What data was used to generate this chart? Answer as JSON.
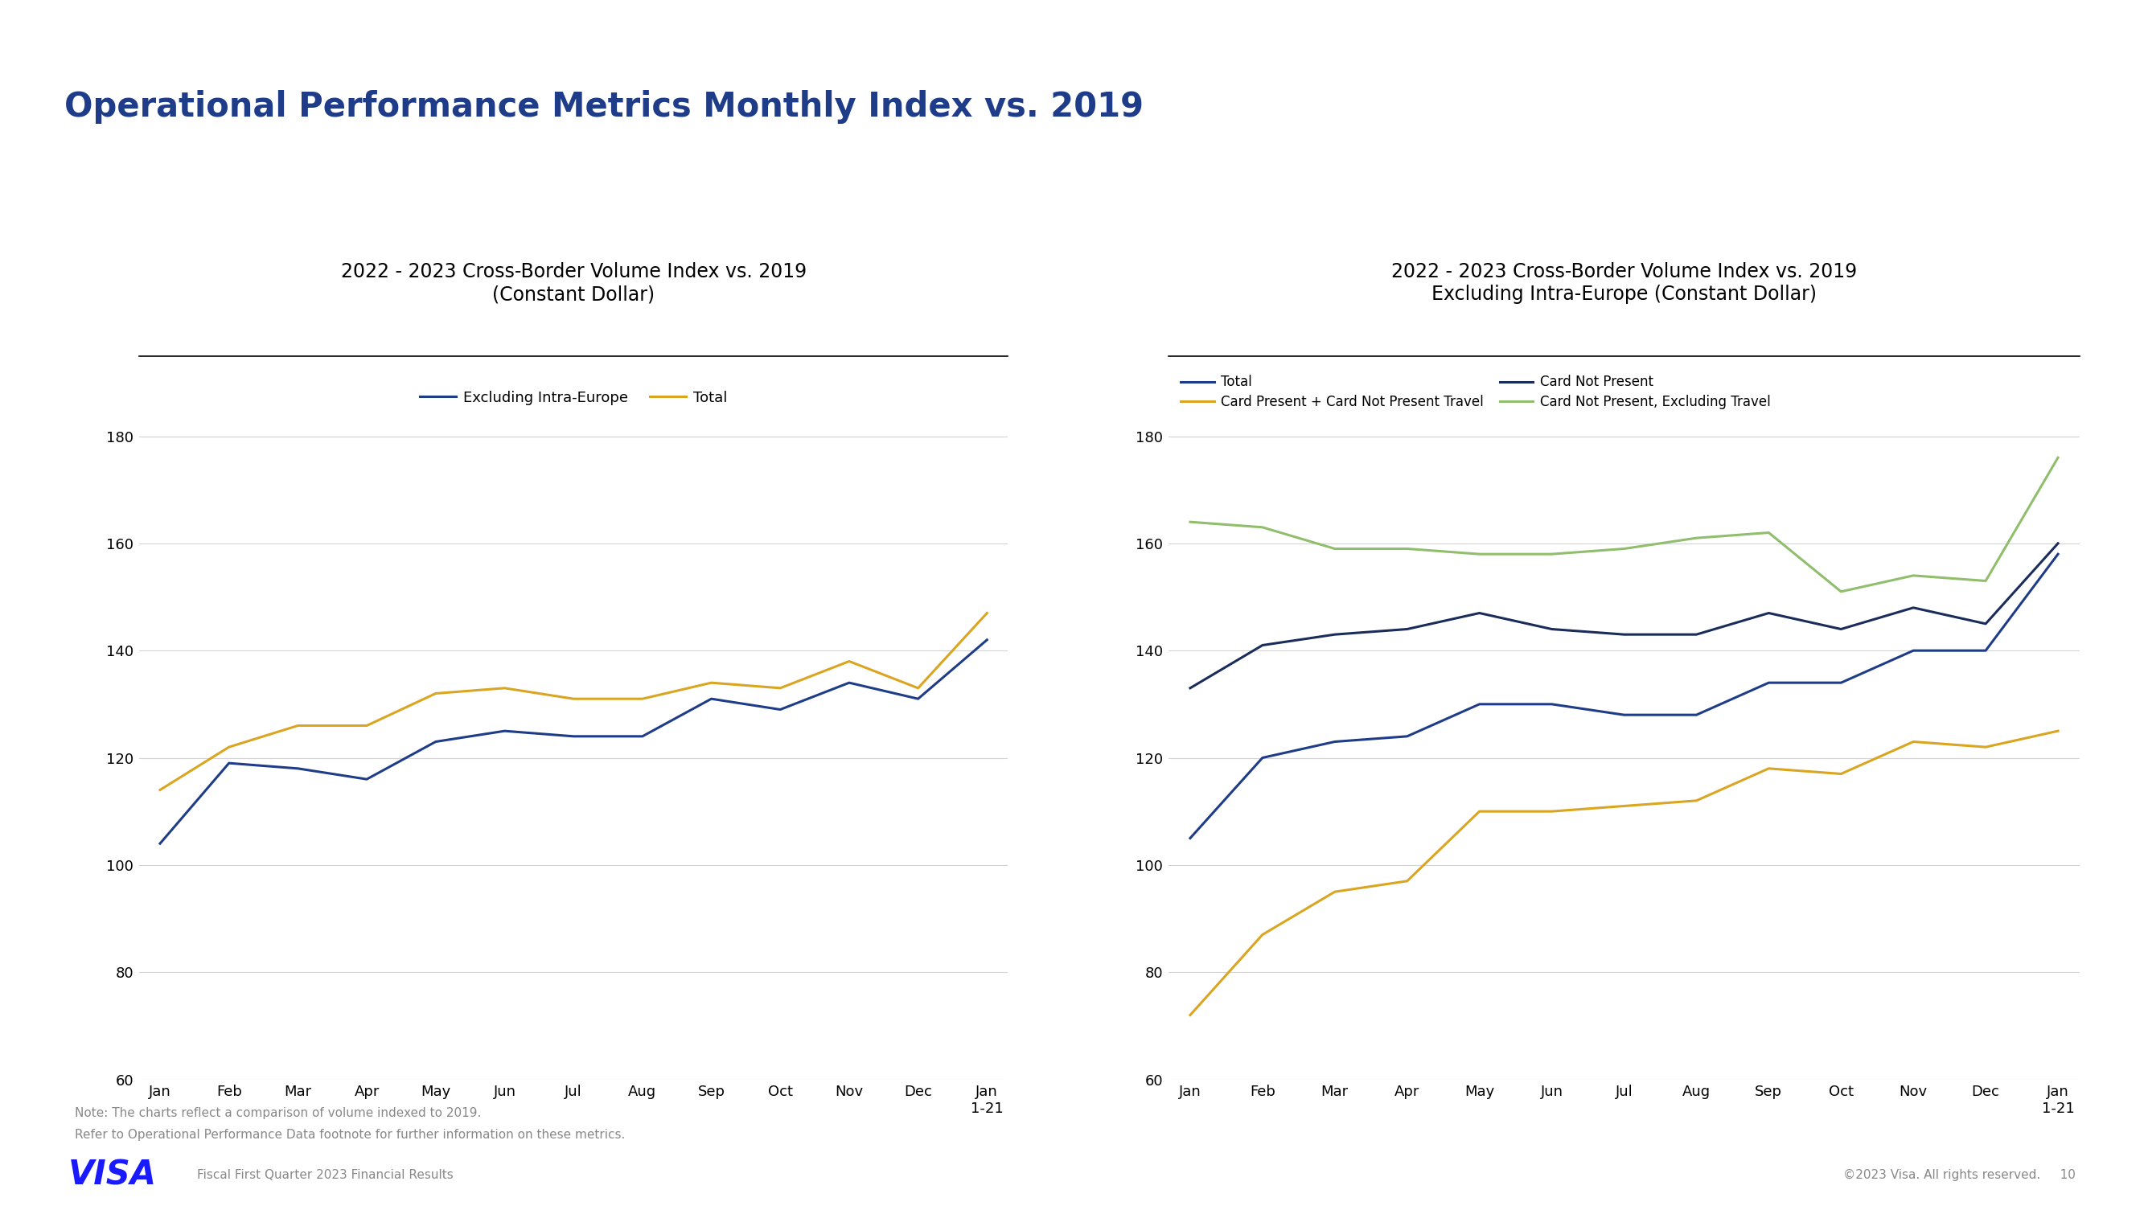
{
  "title_main": "Operational Performance Metrics Monthly Index vs. 2019",
  "chart1_title": "2022 - 2023 Cross-Border Volume Index vs. 2019\n(Constant Dollar)",
  "chart2_title": "2022 - 2023 Cross-Border Volume Index vs. 2019\nExcluding Intra-Europe (Constant Dollar)",
  "x_labels": [
    "Jan",
    "Feb",
    "Mar",
    "Apr",
    "May",
    "Jun",
    "Jul",
    "Aug",
    "Sep",
    "Oct",
    "Nov",
    "Dec",
    "Jan\n1-21"
  ],
  "ylim": [
    60,
    195
  ],
  "yticks": [
    60,
    80,
    100,
    120,
    140,
    160,
    180
  ],
  "chart1": {
    "excluding_intra_europe": [
      104,
      119,
      118,
      116,
      123,
      125,
      124,
      124,
      131,
      129,
      134,
      131,
      142
    ],
    "total": [
      114,
      122,
      126,
      126,
      132,
      133,
      131,
      131,
      134,
      133,
      138,
      133,
      147
    ]
  },
  "chart2": {
    "total": [
      105,
      120,
      123,
      124,
      130,
      130,
      128,
      128,
      134,
      134,
      140,
      140,
      158
    ],
    "card_not_present": [
      133,
      141,
      143,
      144,
      147,
      144,
      143,
      143,
      147,
      144,
      148,
      145,
      160
    ],
    "card_present_travel": [
      72,
      87,
      95,
      97,
      110,
      110,
      111,
      112,
      118,
      117,
      123,
      122,
      125
    ],
    "card_not_present_excl_travel": [
      164,
      163,
      159,
      159,
      158,
      158,
      159,
      161,
      162,
      151,
      154,
      153,
      176
    ]
  },
  "colors": {
    "title_blue": "#1F3C88",
    "line_blue": "#1F3C88",
    "line_gold": "#DAA520",
    "line_dark_navy": "#1a2d5a",
    "line_green": "#90BE6D",
    "visa_blue": "#1a1aff",
    "top_rule": "#1F3C88"
  },
  "note_line1": "Note: The charts reflect a comparison of volume indexed to 2019.",
  "note_line2": "Refer to Operational Performance Data footnote for further information on these metrics.",
  "footer_left": "Fiscal First Quarter 2023 Financial Results",
  "footer_right": "©2023 Visa. All rights reserved.     10"
}
